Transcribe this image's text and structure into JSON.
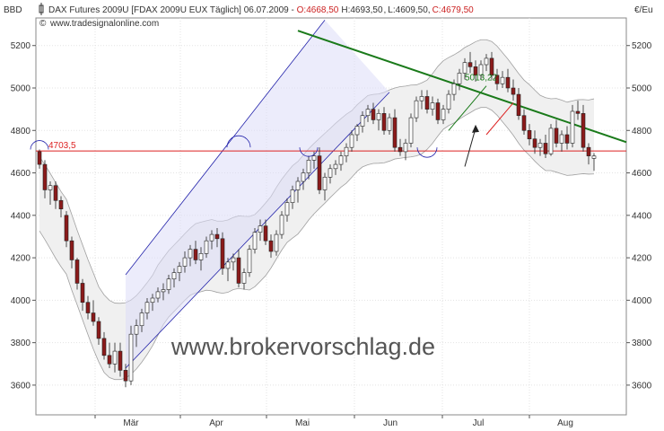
{
  "header": {
    "left_unit": "BBD",
    "right_unit": "€/Eu",
    "instrument": "DAX Futures 2009U [FDAX 2009U EUX  Täglich] 06.07.2009 - ",
    "open": "O:4668,50",
    "high": "H:4693,50",
    "low": "L:4609,50",
    "close": "C:4679,50",
    "source": "www.tradesignalonline.com"
  },
  "watermark": "www.brokervorschlag.de",
  "colors": {
    "up": "#ffffff",
    "down": "#8b1a1a",
    "resistance": "#1a7a1a",
    "support": "#dd2222",
    "channel": "#2222aa",
    "channel_fill": "#dcdcf8",
    "band": "#a0a0a0"
  },
  "chart_data": {
    "type": "candlestick",
    "ylim": [
      3460,
      5330
    ],
    "yticks": [
      3600,
      3800,
      4000,
      4200,
      4400,
      4600,
      4800,
      5000,
      5200
    ],
    "right_ticks": [
      "3600",
      "3800",
      "4000",
      "4200",
      "4400",
      "4600",
      "4800",
      "5000",
      "5200"
    ],
    "left_ticks": [
      "3600",
      "3800",
      "4000",
      "4200",
      "4400",
      "4600",
      "4800",
      "5000",
      "5200"
    ],
    "months": [
      "Mär",
      "Apr",
      "Mai",
      "Jun",
      "Jul",
      "Aug"
    ],
    "candles": [
      [
        4700,
        4710,
        4620,
        4640
      ],
      [
        4640,
        4660,
        4480,
        4520
      ],
      [
        4520,
        4560,
        4450,
        4540
      ],
      [
        4540,
        4560,
        4430,
        4470
      ],
      [
        4470,
        4490,
        4390,
        4430
      ],
      [
        4400,
        4420,
        4250,
        4280
      ],
      [
        4280,
        4300,
        4150,
        4190
      ],
      [
        4190,
        4200,
        4050,
        4080
      ],
      [
        4080,
        4100,
        3950,
        3990
      ],
      [
        3990,
        4020,
        3910,
        3940
      ],
      [
        3940,
        4000,
        3880,
        3900
      ],
      [
        3900,
        3920,
        3790,
        3820
      ],
      [
        3820,
        3850,
        3720,
        3740
      ],
      [
        3740,
        3800,
        3680,
        3700
      ],
      [
        3700,
        3800,
        3660,
        3760
      ],
      [
        3760,
        3800,
        3640,
        3670
      ],
      [
        3670,
        3700,
        3590,
        3620
      ],
      [
        3620,
        3880,
        3600,
        3840
      ],
      [
        3840,
        3910,
        3780,
        3880
      ],
      [
        3880,
        3960,
        3850,
        3940
      ],
      [
        3940,
        4010,
        3910,
        3990
      ],
      [
        3990,
        4030,
        3950,
        4010
      ],
      [
        4010,
        4060,
        3990,
        4040
      ],
      [
        4040,
        4080,
        4000,
        4050
      ],
      [
        4050,
        4120,
        4030,
        4100
      ],
      [
        4100,
        4150,
        4060,
        4130
      ],
      [
        4130,
        4180,
        4090,
        4160
      ],
      [
        4160,
        4230,
        4130,
        4200
      ],
      [
        4200,
        4260,
        4160,
        4240
      ],
      [
        4240,
        4280,
        4170,
        4190
      ],
      [
        4190,
        4250,
        4140,
        4220
      ],
      [
        4220,
        4300,
        4200,
        4280
      ],
      [
        4280,
        4330,
        4240,
        4310
      ],
      [
        4310,
        4340,
        4250,
        4290
      ],
      [
        4290,
        4320,
        4120,
        4150
      ],
      [
        4150,
        4200,
        4090,
        4180
      ],
      [
        4180,
        4220,
        4140,
        4200
      ],
      [
        4200,
        4240,
        4060,
        4080
      ],
      [
        4080,
        4150,
        4050,
        4130
      ],
      [
        4130,
        4260,
        4110,
        4240
      ],
      [
        4240,
        4340,
        4220,
        4320
      ],
      [
        4320,
        4380,
        4280,
        4350
      ],
      [
        4350,
        4380,
        4260,
        4280
      ],
      [
        4280,
        4310,
        4200,
        4230
      ],
      [
        4230,
        4330,
        4210,
        4310
      ],
      [
        4310,
        4420,
        4290,
        4400
      ],
      [
        4400,
        4480,
        4370,
        4460
      ],
      [
        4460,
        4540,
        4430,
        4520
      ],
      [
        4520,
        4580,
        4460,
        4560
      ],
      [
        4560,
        4620,
        4520,
        4600
      ],
      [
        4600,
        4680,
        4570,
        4660
      ],
      [
        4660,
        4700,
        4620,
        4680
      ],
      [
        4680,
        4720,
        4500,
        4520
      ],
      [
        4520,
        4600,
        4470,
        4580
      ],
      [
        4580,
        4640,
        4550,
        4620
      ],
      [
        4620,
        4660,
        4590,
        4640
      ],
      [
        4640,
        4700,
        4610,
        4680
      ],
      [
        4680,
        4740,
        4650,
        4720
      ],
      [
        4720,
        4800,
        4700,
        4780
      ],
      [
        4780,
        4830,
        4750,
        4820
      ],
      [
        4820,
        4890,
        4790,
        4870
      ],
      [
        4870,
        4920,
        4840,
        4900
      ],
      [
        4900,
        4930,
        4830,
        4850
      ],
      [
        4850,
        4900,
        4800,
        4880
      ],
      [
        4880,
        4910,
        4780,
        4800
      ],
      [
        4800,
        4880,
        4780,
        4860
      ],
      [
        4860,
        4900,
        4700,
        4720
      ],
      [
        4720,
        4760,
        4680,
        4700
      ],
      [
        4700,
        4760,
        4660,
        4740
      ],
      [
        4740,
        4880,
        4720,
        4860
      ],
      [
        4860,
        4960,
        4840,
        4940
      ],
      [
        4940,
        4990,
        4900,
        4960
      ],
      [
        4960,
        4990,
        4880,
        4900
      ],
      [
        4900,
        4960,
        4870,
        4930
      ],
      [
        4930,
        4950,
        4830,
        4850
      ],
      [
        4850,
        4920,
        4830,
        4900
      ],
      [
        4900,
        4990,
        4880,
        4970
      ],
      [
        4970,
        5040,
        4940,
        5020
      ],
      [
        5020,
        5090,
        4990,
        5070
      ],
      [
        5070,
        5140,
        5040,
        5120
      ],
      [
        5120,
        5170,
        5070,
        5100
      ],
      [
        5100,
        5130,
        5030,
        5060
      ],
      [
        5060,
        5130,
        5040,
        5110
      ],
      [
        5110,
        5160,
        5080,
        5140
      ],
      [
        5140,
        5170,
        5040,
        5060
      ],
      [
        5060,
        5090,
        4990,
        5020
      ],
      [
        5020,
        5080,
        5000,
        5050
      ],
      [
        5050,
        5090,
        4980,
        5000
      ],
      [
        5000,
        5040,
        4940,
        4970
      ],
      [
        4970,
        5000,
        4850,
        4870
      ],
      [
        4870,
        4900,
        4780,
        4800
      ],
      [
        4800,
        4830,
        4730,
        4760
      ],
      [
        4760,
        4800,
        4690,
        4720
      ],
      [
        4720,
        4760,
        4680,
        4740
      ],
      [
        4740,
        4780,
        4670,
        4690
      ],
      [
        4690,
        4830,
        4680,
        4810
      ],
      [
        4810,
        4850,
        4720,
        4740
      ],
      [
        4740,
        4800,
        4700,
        4780
      ],
      [
        4780,
        4820,
        4710,
        4740
      ],
      [
        4740,
        4920,
        4720,
        4890
      ],
      [
        4890,
        4940,
        4850,
        4880
      ],
      [
        4880,
        4920,
        4700,
        4720
      ],
      [
        4720,
        4740,
        4640,
        4680
      ],
      [
        4668.5,
        4693.5,
        4609.5,
        4679.5
      ]
    ],
    "support_line": {
      "value": 4703.5,
      "label": "4703,5"
    },
    "resistance_line": {
      "from": [
        0,
        5270
      ],
      "to": [
        109,
        4750
      ],
      "label": "5013,22"
    }
  }
}
